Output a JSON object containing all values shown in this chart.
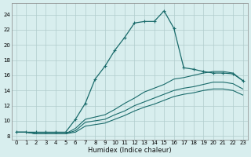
{
  "xlabel": "Humidex (Indice chaleur)",
  "bg_color": "#d8eeee",
  "grid_color": "#b0cccc",
  "line_color": "#1a6b6b",
  "xlim": [
    -0.5,
    23.5
  ],
  "ylim": [
    7.5,
    25.5
  ],
  "xticks": [
    0,
    1,
    2,
    3,
    4,
    5,
    6,
    7,
    8,
    9,
    10,
    11,
    12,
    13,
    14,
    15,
    16,
    17,
    18,
    19,
    20,
    21,
    22,
    23
  ],
  "yticks": [
    8,
    10,
    12,
    14,
    16,
    18,
    20,
    22,
    24
  ],
  "line_upper": {
    "x": [
      0,
      1,
      2,
      3,
      4,
      5,
      6,
      7,
      8,
      9,
      10,
      11,
      12,
      13,
      14,
      15,
      16,
      17,
      18,
      19,
      20,
      21,
      22,
      23
    ],
    "y": [
      8.5,
      8.5,
      8.5,
      8.5,
      8.5,
      8.5,
      10.2,
      12.3,
      15.5,
      17.2,
      19.3,
      21.0,
      22.9,
      23.1,
      23.1,
      24.5,
      22.2,
      17.0,
      16.8,
      16.5,
      16.3,
      16.3,
      16.2,
      15.3
    ]
  },
  "line_max": {
    "x": [
      0,
      1,
      2,
      3,
      4,
      5,
      6,
      7,
      8,
      9,
      10,
      11,
      12,
      13,
      14,
      15,
      16,
      17,
      18,
      19,
      20,
      21,
      22,
      23
    ],
    "y": [
      8.5,
      8.5,
      8.3,
      8.3,
      8.3,
      8.3,
      9.0,
      10.2,
      10.5,
      10.8,
      11.5,
      12.3,
      13.0,
      13.8,
      14.3,
      14.8,
      15.5,
      15.7,
      16.0,
      16.3,
      16.5,
      16.5,
      16.3,
      15.3
    ]
  },
  "line_mid": {
    "x": [
      0,
      1,
      2,
      3,
      4,
      5,
      6,
      7,
      8,
      9,
      10,
      11,
      12,
      13,
      14,
      15,
      16,
      17,
      18,
      19,
      20,
      21,
      22,
      23
    ],
    "y": [
      8.5,
      8.5,
      8.3,
      8.3,
      8.3,
      8.3,
      8.7,
      9.8,
      10.0,
      10.2,
      10.8,
      11.3,
      12.0,
      12.5,
      13.0,
      13.5,
      14.0,
      14.3,
      14.5,
      14.8,
      15.1,
      15.1,
      14.9,
      14.2
    ]
  },
  "line_min": {
    "x": [
      0,
      1,
      2,
      3,
      4,
      5,
      6,
      7,
      8,
      9,
      10,
      11,
      12,
      13,
      14,
      15,
      16,
      17,
      18,
      19,
      20,
      21,
      22,
      23
    ],
    "y": [
      8.5,
      8.5,
      8.3,
      8.3,
      8.3,
      8.3,
      8.5,
      9.3,
      9.5,
      9.7,
      10.2,
      10.7,
      11.3,
      11.8,
      12.2,
      12.7,
      13.2,
      13.5,
      13.7,
      14.0,
      14.2,
      14.2,
      14.0,
      13.4
    ]
  }
}
